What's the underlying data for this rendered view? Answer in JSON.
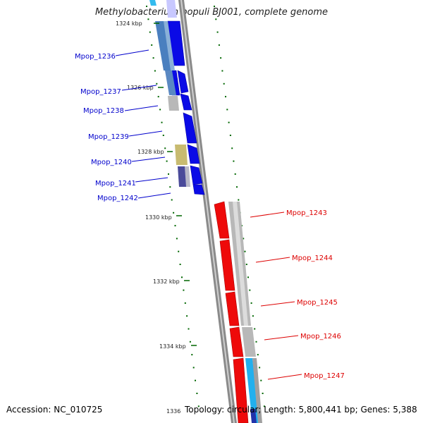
{
  "title": "Methylobacterium populi BJ001, complete genome",
  "accession_text": "Accession: NC_010725",
  "topology_text": "Topology: circular; Length: 5,800,441 bp; Genes: 5,388",
  "colors": {
    "forward_gene": "#0000ee",
    "reverse_gene": "#ee0000",
    "forward_label": "#0000cc",
    "reverse_label": "#dd0000",
    "tick": "#006600",
    "backbone": "#888888"
  },
  "position_ticks": [
    "1324 kbp",
    "1326 kbp",
    "1328 kbp",
    "1330 kbp",
    "1332 kbp",
    "1334 kbp",
    "1336"
  ],
  "forward_genes": [
    {
      "label": "Mpop_1236"
    },
    {
      "label": "Mpop_1237"
    },
    {
      "label": "Mpop_1238"
    },
    {
      "label": "Mpop_1239"
    },
    {
      "label": "Mpop_1240"
    },
    {
      "label": "Mpop_1241"
    },
    {
      "label": "Mpop_1242"
    }
  ],
  "reverse_genes": [
    {
      "label": "Mpop_1243"
    },
    {
      "label": "Mpop_1244"
    },
    {
      "label": "Mpop_1245"
    },
    {
      "label": "Mpop_1246"
    },
    {
      "label": "Mpop_1247"
    }
  ]
}
